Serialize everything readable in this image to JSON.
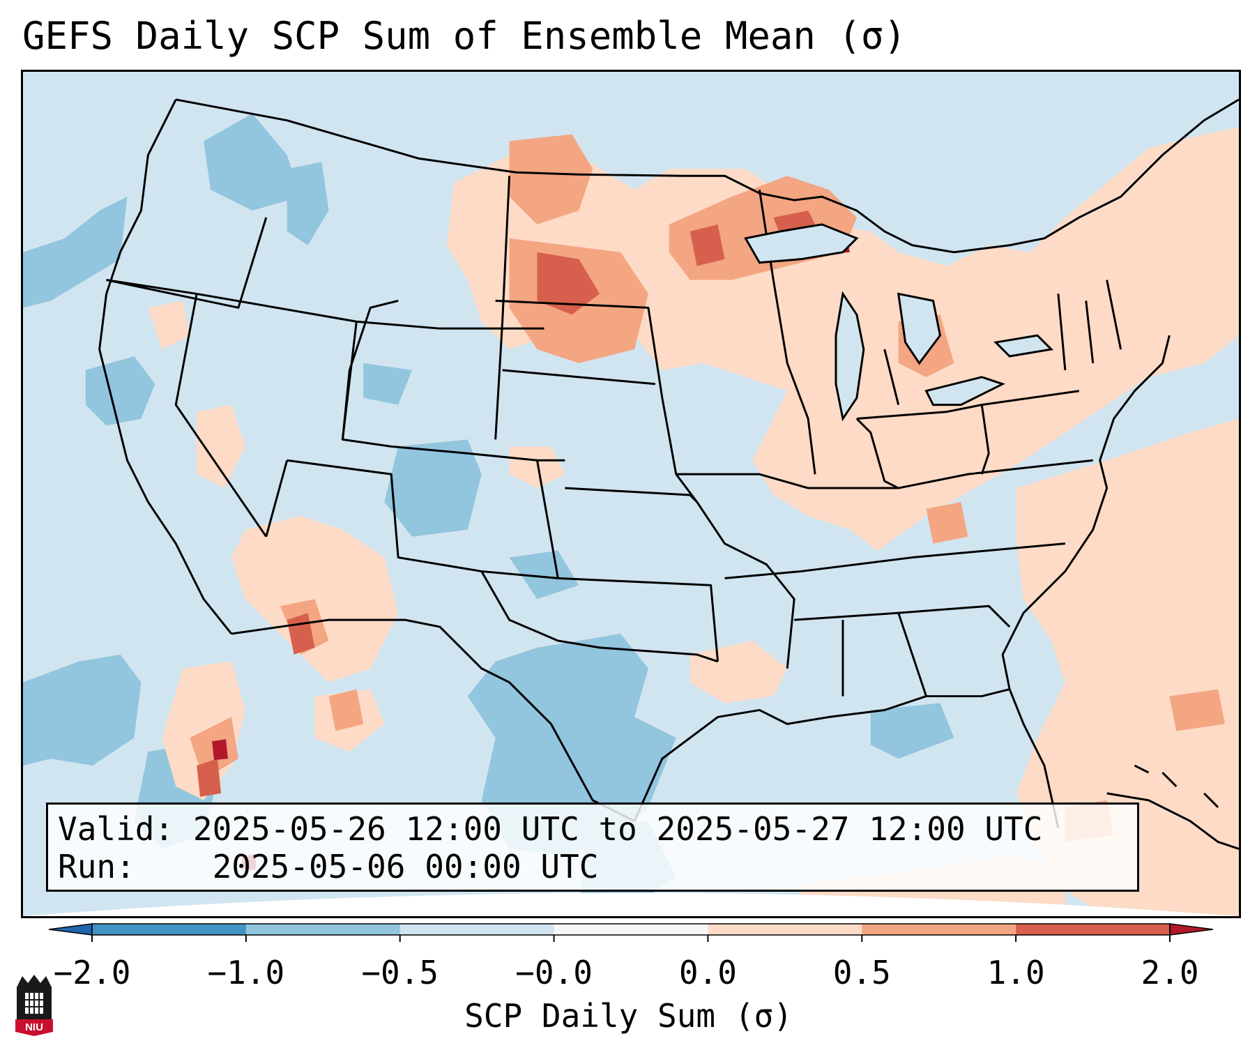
{
  "title": "GEFS Daily SCP Sum of Ensemble Mean (σ)",
  "info": {
    "valid_label": "Valid:",
    "valid_value": "2025-05-26 12:00 UTC to 2025-05-27 12:00 UTC",
    "run_label": "Run:  ",
    "run_value": "2025-05-06 00:00 UTC"
  },
  "colorbar": {
    "label": "SCP Daily Sum (σ)",
    "ticks": [
      "−2.0",
      "−1.0",
      "−0.5",
      "−0.0",
      "0.0",
      "0.5",
      "1.0",
      "2.0"
    ],
    "bins": [
      {
        "range": "< -2.0",
        "color": "#2166ac"
      },
      {
        "range": "-2.0 to -1.0",
        "color": "#4393c3"
      },
      {
        "range": "-1.0 to -0.5",
        "color": "#92c5de"
      },
      {
        "range": "-0.5 to -0.0",
        "color": "#d1e5f0"
      },
      {
        "range": "-0.0 to 0.0",
        "color": "#f7f7f7"
      },
      {
        "range": "0.0 to 0.5",
        "color": "#fddbc7"
      },
      {
        "range": "0.5 to 1.0",
        "color": "#f4a582"
      },
      {
        "range": "1.0 to 2.0",
        "color": "#d6604d"
      },
      {
        "range": "> 2.0",
        "color": "#b2182b"
      }
    ]
  },
  "logo": {
    "text": "NIU",
    "icon": "university-tower-icon"
  }
}
